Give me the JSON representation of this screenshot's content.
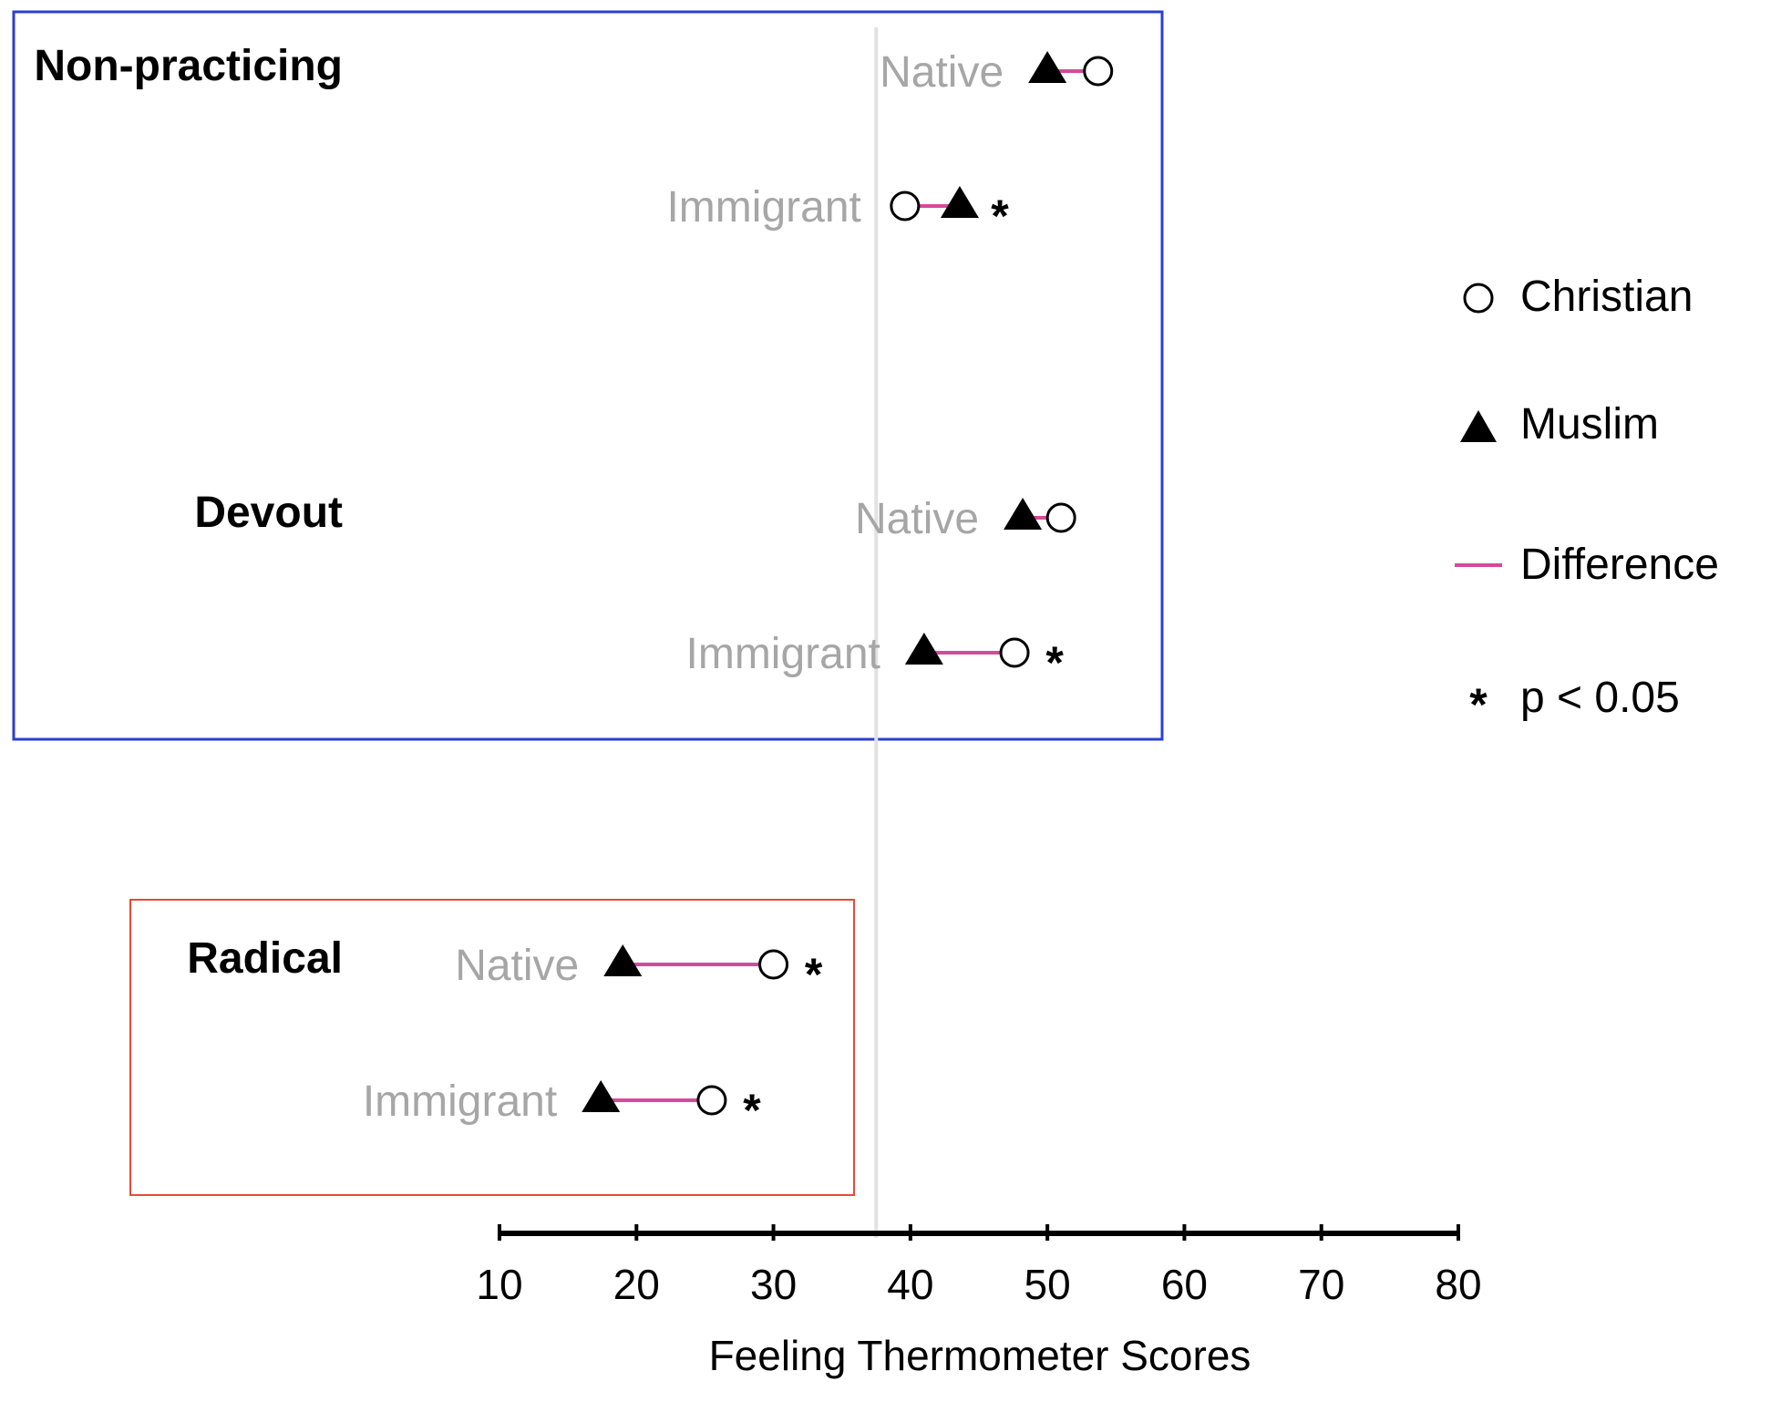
{
  "chart_data": {
    "type": "dot",
    "xlabel": "Feeling Thermometer Scores",
    "xlim": [
      10,
      80
    ],
    "xticks": [
      10,
      20,
      30,
      40,
      50,
      60,
      70,
      80
    ],
    "reference_line": 37.5,
    "legend": {
      "christian": "Christian",
      "muslim": "Muslim",
      "difference": "Difference",
      "significance_marker": "*",
      "significance": "p < 0.05",
      "placement": "right"
    },
    "colors": {
      "difference": "#d64a9a",
      "group_box_practicing": "#2b3fd1",
      "group_box_radical": "#e34b3a",
      "reference_line": "#e2e2e2",
      "row_label": "#a6a6a6"
    },
    "groups": [
      {
        "label": "Non-practicing",
        "box": "practicing",
        "rows": [
          {
            "label": "Native",
            "christian": 53.7,
            "muslim": 50.0,
            "significant": false
          },
          {
            "label": "Immigrant",
            "christian": 39.6,
            "muslim": 43.6,
            "significant": true
          }
        ]
      },
      {
        "label": "Devout",
        "box": "practicing",
        "rows": [
          {
            "label": "Native",
            "christian": 51.0,
            "muslim": 48.2,
            "significant": false
          },
          {
            "label": "Immigrant",
            "christian": 47.6,
            "muslim": 41.0,
            "significant": true
          }
        ]
      },
      {
        "label": "Radical",
        "box": "radical",
        "rows": [
          {
            "label": "Native",
            "christian": 30.0,
            "muslim": 19.0,
            "significant": true
          },
          {
            "label": "Immigrant",
            "christian": 25.5,
            "muslim": 17.4,
            "significant": true
          }
        ]
      }
    ]
  }
}
